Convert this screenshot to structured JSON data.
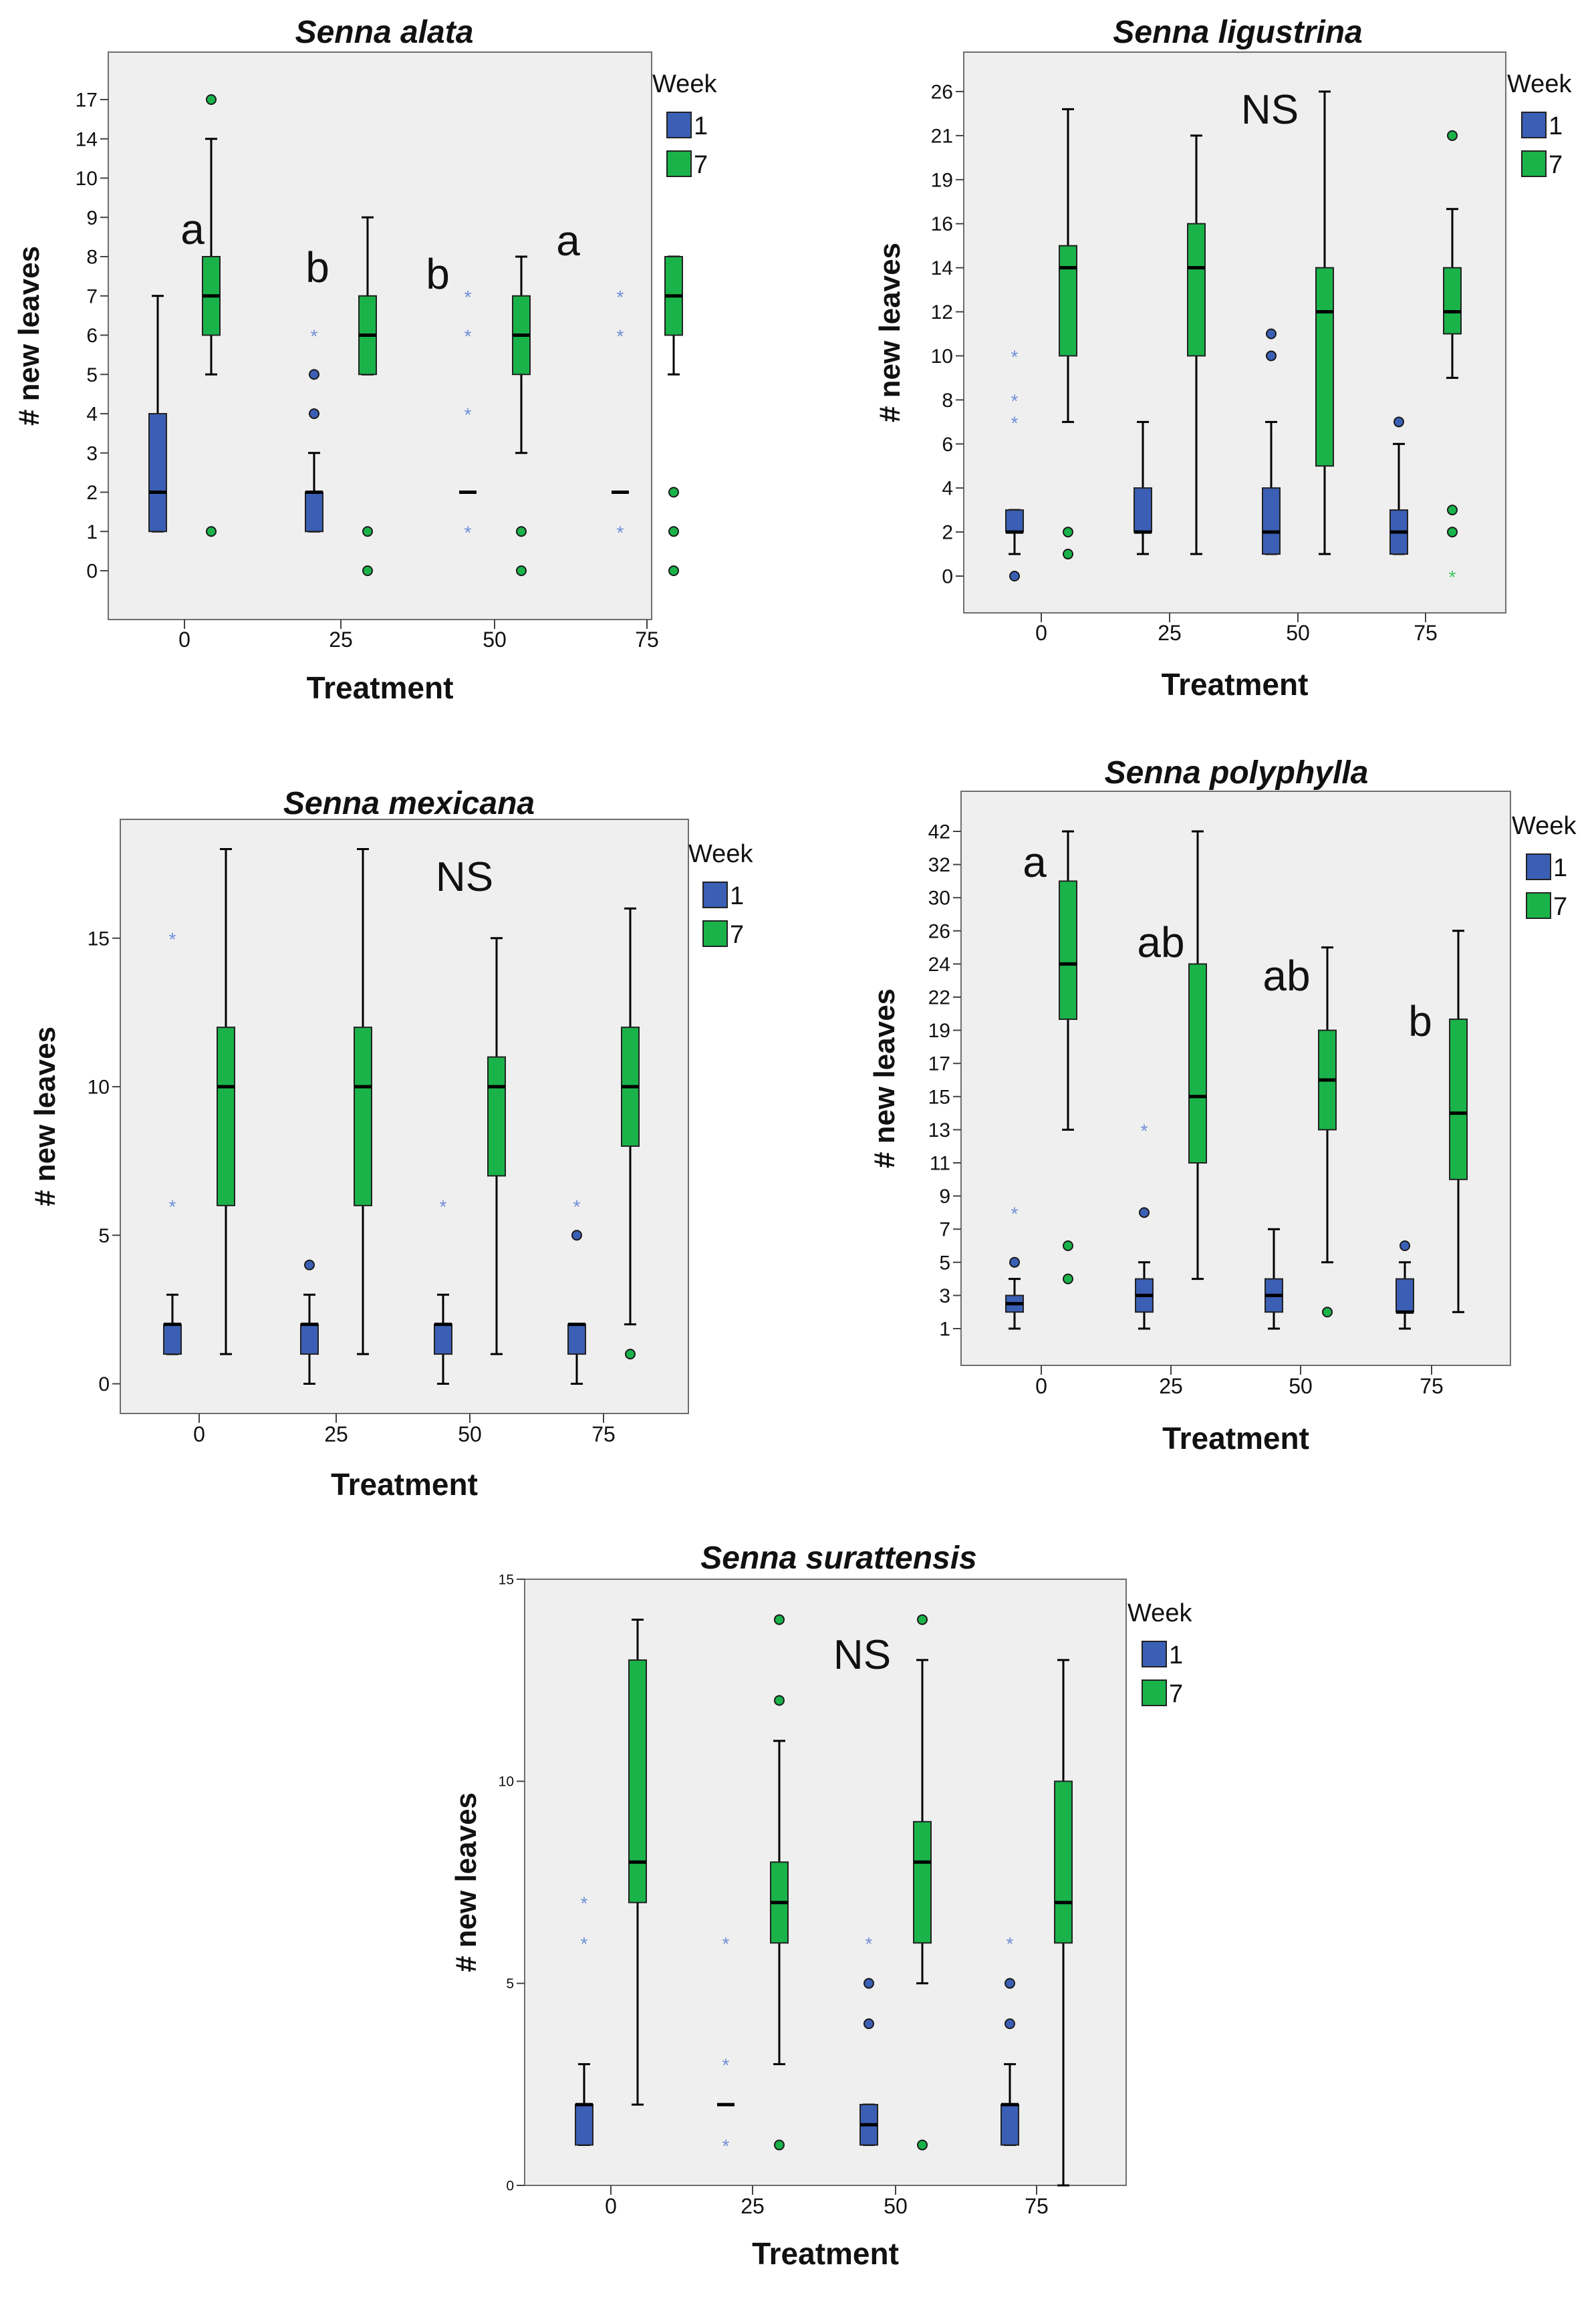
{
  "figure": {
    "axis_x_label": "Treatment",
    "axis_y_label": "# new leaves",
    "legend_title": "Week",
    "legend_items": [
      {
        "label": "1",
        "color": "#3b5fb5"
      },
      {
        "label": "7",
        "color": "#1ab34a"
      }
    ]
  },
  "chart_data": [
    {
      "type": "boxplot",
      "title": "Senna alata",
      "xlabel": "Treatment",
      "ylabel": "# new leaves",
      "categories": [
        "0",
        "25",
        "50",
        "75"
      ],
      "y_scale": "ordinal",
      "y_ticks": [
        "0",
        "1",
        "2",
        "3",
        "4",
        "5",
        "6",
        "7",
        "8",
        "9",
        "10",
        "14",
        "17"
      ],
      "significance": [
        "a",
        "b",
        "b",
        "a"
      ],
      "series": [
        {
          "name": "1",
          "color": "#3b5fb5",
          "boxes": [
            {
              "category": "0",
              "whisker_low": 1,
              "q1": 1,
              "median": 2,
              "q3": 4,
              "whisker_high": 7,
              "outliers": [],
              "extremes": []
            },
            {
              "category": "25",
              "whisker_low": 1,
              "q1": 1,
              "median": 2,
              "q3": 2,
              "whisker_high": 3,
              "outliers": [
                4,
                5
              ],
              "extremes": [
                6
              ]
            },
            {
              "category": "50",
              "whisker_low": 2,
              "q1": 2,
              "median": 2,
              "q3": 2,
              "whisker_high": 2,
              "outliers": [],
              "extremes": [
                1,
                4,
                6,
                7
              ]
            },
            {
              "category": "75",
              "whisker_low": 2,
              "q1": 2,
              "median": 2,
              "q3": 2,
              "whisker_high": 2,
              "outliers": [],
              "extremes": [
                1,
                6,
                7
              ]
            }
          ]
        },
        {
          "name": "7",
          "color": "#1ab34a",
          "boxes": [
            {
              "category": "0",
              "whisker_low": 5,
              "q1": 6,
              "median": 7,
              "q3": 8,
              "whisker_high": 14,
              "outliers": [
                1,
                17
              ],
              "extremes": []
            },
            {
              "category": "25",
              "whisker_low": 5,
              "q1": 5,
              "median": 6,
              "q3": 7,
              "whisker_high": 9,
              "outliers": [
                0,
                1
              ],
              "extremes": []
            },
            {
              "category": "50",
              "whisker_low": 3,
              "q1": 5,
              "median": 6,
              "q3": 7,
              "whisker_high": 8,
              "outliers": [
                0,
                1
              ],
              "extremes": []
            },
            {
              "category": "75",
              "whisker_low": 5,
              "q1": 6,
              "median": 7,
              "q3": 8,
              "whisker_high": 8,
              "outliers": [
                0,
                1,
                2
              ],
              "extremes": []
            }
          ]
        }
      ]
    },
    {
      "type": "boxplot",
      "title": "Senna ligustrina",
      "xlabel": "Treatment",
      "ylabel": "# new leaves",
      "categories": [
        "0",
        "25",
        "50",
        "75"
      ],
      "y_scale": "ordinal",
      "y_ticks": [
        "0",
        "2",
        "4",
        "6",
        "8",
        "10",
        "12",
        "14",
        "16",
        "19",
        "21",
        "26"
      ],
      "annotation": "NS",
      "series": [
        {
          "name": "1",
          "color": "#3b5fb5",
          "boxes": [
            {
              "category": "0",
              "whisker_low": 1,
              "q1": 2,
              "median": 2,
              "q3": 3,
              "whisker_high": 3,
              "outliers": [
                0
              ],
              "extremes": [
                7,
                8,
                10
              ]
            },
            {
              "category": "25",
              "whisker_low": 1,
              "q1": 2,
              "median": 2,
              "q3": 4,
              "whisker_high": 7,
              "outliers": [],
              "extremes": []
            },
            {
              "category": "50",
              "whisker_low": 1,
              "q1": 1,
              "median": 2,
              "q3": 4,
              "whisker_high": 7,
              "outliers": [
                10,
                11
              ],
              "extremes": []
            },
            {
              "category": "75",
              "whisker_low": 1,
              "q1": 1,
              "median": 2,
              "q3": 3,
              "whisker_high": 6,
              "outliers": [
                7
              ],
              "extremes": []
            }
          ]
        },
        {
          "name": "7",
          "color": "#1ab34a",
          "boxes": [
            {
              "category": "0",
              "whisker_low": 7,
              "q1": 10,
              "median": 14,
              "q3": 15,
              "whisker_high": 24,
              "outliers": [
                1,
                2
              ],
              "extremes": []
            },
            {
              "category": "25",
              "whisker_low": 1,
              "q1": 10,
              "median": 14,
              "q3": 16,
              "whisker_high": 21,
              "outliers": [],
              "extremes": []
            },
            {
              "category": "50",
              "whisker_low": 1,
              "q1": 5,
              "median": 12,
              "q3": 14,
              "whisker_high": 26,
              "outliers": [],
              "extremes": []
            },
            {
              "category": "75",
              "whisker_low": 9,
              "q1": 11,
              "median": 12,
              "q3": 14,
              "whisker_high": 17,
              "outliers": [
                2,
                3,
                21
              ],
              "extremes": [
                0
              ]
            }
          ]
        }
      ]
    },
    {
      "type": "boxplot",
      "title": "Senna mexicana",
      "xlabel": "Treatment",
      "ylabel": "# new leaves",
      "categories": [
        "0",
        "25",
        "50",
        "75"
      ],
      "y_scale": "linear",
      "y_ticks": [
        "0",
        "5",
        "10",
        "15"
      ],
      "ylim": [
        -1,
        19
      ],
      "annotation": "NS",
      "series": [
        {
          "name": "1",
          "color": "#3b5fb5",
          "boxes": [
            {
              "category": "0",
              "whisker_low": 1,
              "q1": 1,
              "median": 2,
              "q3": 2,
              "whisker_high": 3,
              "outliers": [],
              "extremes": [
                6,
                15
              ]
            },
            {
              "category": "25",
              "whisker_low": 0,
              "q1": 1,
              "median": 2,
              "q3": 2,
              "whisker_high": 3,
              "outliers": [
                4
              ],
              "extremes": []
            },
            {
              "category": "50",
              "whisker_low": 0,
              "q1": 1,
              "median": 2,
              "q3": 2,
              "whisker_high": 3,
              "outliers": [],
              "extremes": [
                6
              ]
            },
            {
              "category": "75",
              "whisker_low": 0,
              "q1": 1,
              "median": 2,
              "q3": 2,
              "whisker_high": 2,
              "outliers": [
                5
              ],
              "extremes": [
                6
              ]
            }
          ]
        },
        {
          "name": "7",
          "color": "#1ab34a",
          "boxes": [
            {
              "category": "0",
              "whisker_low": 1,
              "q1": 6,
              "median": 10,
              "q3": 12,
              "whisker_high": 18,
              "outliers": [],
              "extremes": []
            },
            {
              "category": "25",
              "whisker_low": 1,
              "q1": 6,
              "median": 10,
              "q3": 12,
              "whisker_high": 18,
              "outliers": [],
              "extremes": []
            },
            {
              "category": "50",
              "whisker_low": 1,
              "q1": 7,
              "median": 10,
              "q3": 11,
              "whisker_high": 15,
              "outliers": [],
              "extremes": []
            },
            {
              "category": "75",
              "whisker_low": 2,
              "q1": 8,
              "median": 10,
              "q3": 12,
              "whisker_high": 16,
              "outliers": [
                1
              ],
              "extremes": []
            }
          ]
        }
      ]
    },
    {
      "type": "boxplot",
      "title": "Senna polyphylla",
      "xlabel": "Treatment",
      "ylabel": "# new leaves",
      "categories": [
        "0",
        "25",
        "50",
        "75"
      ],
      "y_scale": "ordinal",
      "y_ticks": [
        "1",
        "3",
        "5",
        "7",
        "9",
        "11",
        "13",
        "15",
        "17",
        "19",
        "22",
        "24",
        "26",
        "30",
        "32",
        "42"
      ],
      "significance": [
        "a",
        "ab",
        "ab",
        "b"
      ],
      "series": [
        {
          "name": "1",
          "color": "#3b5fb5",
          "boxes": [
            {
              "category": "0",
              "whisker_low": 1,
              "q1": 2,
              "median": 2.5,
              "q3": 3,
              "whisker_high": 4,
              "outliers": [
                5
              ],
              "extremes": [
                8
              ]
            },
            {
              "category": "25",
              "whisker_low": 1,
              "q1": 2,
              "median": 3,
              "q3": 4,
              "whisker_high": 5,
              "outliers": [
                8
              ],
              "extremes": [
                13
              ]
            },
            {
              "category": "50",
              "whisker_low": 1,
              "q1": 2,
              "median": 3,
              "q3": 4,
              "whisker_high": 7,
              "outliers": [],
              "extremes": []
            },
            {
              "category": "75",
              "whisker_low": 1,
              "q1": 2,
              "median": 2,
              "q3": 4,
              "whisker_high": 5,
              "outliers": [
                6
              ],
              "extremes": []
            }
          ]
        },
        {
          "name": "7",
          "color": "#1ab34a",
          "boxes": [
            {
              "category": "0",
              "whisker_low": 13,
              "q1": 20,
              "median": 24,
              "q3": 31,
              "whisker_high": 42,
              "outliers": [
                4,
                6
              ],
              "extremes": []
            },
            {
              "category": "25",
              "whisker_low": 4,
              "q1": 11,
              "median": 15,
              "q3": 24,
              "whisker_high": 42,
              "outliers": [],
              "extremes": []
            },
            {
              "category": "50",
              "whisker_low": 5,
              "q1": 13,
              "median": 16,
              "q3": 19,
              "whisker_high": 25,
              "outliers": [
                2
              ],
              "extremes": []
            },
            {
              "category": "75",
              "whisker_low": 2,
              "q1": 10,
              "median": 14,
              "q3": 20,
              "whisker_high": 26,
              "outliers": [],
              "extremes": []
            }
          ]
        }
      ]
    },
    {
      "type": "boxplot",
      "title": "Senna surattensis",
      "xlabel": "Treatment",
      "ylabel": "# new leaves",
      "categories": [
        "0",
        "25",
        "50",
        "75"
      ],
      "y_scale": "linear",
      "y_ticks": [
        "0",
        "5",
        "10",
        "15"
      ],
      "ylim": [
        0,
        15
      ],
      "annotation": "NS",
      "series": [
        {
          "name": "1",
          "color": "#3b5fb5",
          "boxes": [
            {
              "category": "0",
              "whisker_low": 1,
              "q1": 1,
              "median": 2,
              "q3": 2,
              "whisker_high": 3,
              "outliers": [],
              "extremes": [
                6,
                7
              ]
            },
            {
              "category": "25",
              "whisker_low": 2,
              "q1": 2,
              "median": 2,
              "q3": 2,
              "whisker_high": 2,
              "outliers": [],
              "extremes": [
                1,
                3,
                6
              ]
            },
            {
              "category": "50",
              "whisker_low": 1,
              "q1": 1,
              "median": 1.5,
              "q3": 2,
              "whisker_high": 2,
              "outliers": [
                4,
                5
              ],
              "extremes": [
                6
              ]
            },
            {
              "category": "75",
              "whisker_low": 1,
              "q1": 1,
              "median": 2,
              "q3": 2,
              "whisker_high": 3,
              "outliers": [
                4,
                5
              ],
              "extremes": [
                6
              ]
            }
          ]
        },
        {
          "name": "7",
          "color": "#1ab34a",
          "boxes": [
            {
              "category": "0",
              "whisker_low": 2,
              "q1": 7,
              "median": 8,
              "q3": 13,
              "whisker_high": 14,
              "outliers": [],
              "extremes": []
            },
            {
              "category": "25",
              "whisker_low": 3,
              "q1": 6,
              "median": 7,
              "q3": 8,
              "whisker_high": 11,
              "outliers": [
                1,
                12,
                14
              ],
              "extremes": []
            },
            {
              "category": "50",
              "whisker_low": 5,
              "q1": 6,
              "median": 8,
              "q3": 9,
              "whisker_high": 13,
              "outliers": [
                1,
                14
              ],
              "extremes": []
            },
            {
              "category": "75",
              "whisker_low": 0,
              "q1": 6,
              "median": 7,
              "q3": 10,
              "whisker_high": 13,
              "outliers": [],
              "extremes": []
            }
          ]
        }
      ]
    }
  ]
}
